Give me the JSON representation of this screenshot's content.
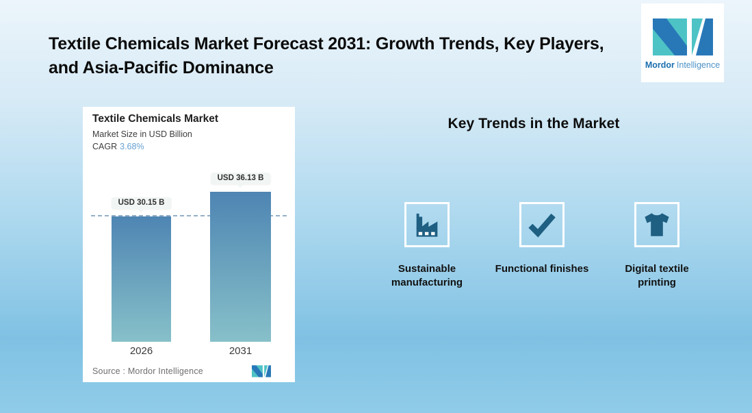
{
  "page": {
    "title": "Textile Chemicals Market Forecast 2031: Growth Trends, Key Players, and Asia-Pacific Dominance"
  },
  "brand": {
    "name_bold": "Mordor",
    "name_light": "Intelligence",
    "teal": "#4EC3C5",
    "blue": "#2878B8"
  },
  "chart_card": {
    "title": "Textile Chemicals Market",
    "subtitle": "Market Size in USD Billion",
    "cagr_label": "CAGR",
    "cagr_value": "3.68%",
    "source_text": "Source :  Mordor Intelligence"
  },
  "chart_data": {
    "type": "bar",
    "title": "Textile Chemicals Market",
    "subtitle": "Market Size in USD Billion",
    "cagr_pct": 3.68,
    "unit": "USD Billion",
    "categories": [
      "2026",
      "2031"
    ],
    "values": [
      30.15,
      36.13
    ],
    "value_labels": [
      "USD 30.15 B",
      "USD 36.13 B"
    ],
    "ylim": [
      0,
      45
    ],
    "grid": false,
    "reference_dashed_line_at": 30.15,
    "bar_gradient": [
      "#4E85B3",
      "#87C0C9"
    ],
    "dash_color": "#93AFC7"
  },
  "trends": {
    "heading": "Key Trends in the Market",
    "items": [
      {
        "icon": "factory-icon",
        "label": "Sustainable manufacturing"
      },
      {
        "icon": "checkmark-icon",
        "label": "Functional finishes"
      },
      {
        "icon": "tshirt-icon",
        "label": "Digital textile printing"
      }
    ],
    "icon_color": "#1E5F82"
  },
  "theme": {
    "background_gradient": [
      "#ECF5FB",
      "#AAD7EE",
      "#80C1E3",
      "#90CCE9"
    ],
    "card_background": "#FFFFFF",
    "title_color": "#0B0B0B"
  }
}
